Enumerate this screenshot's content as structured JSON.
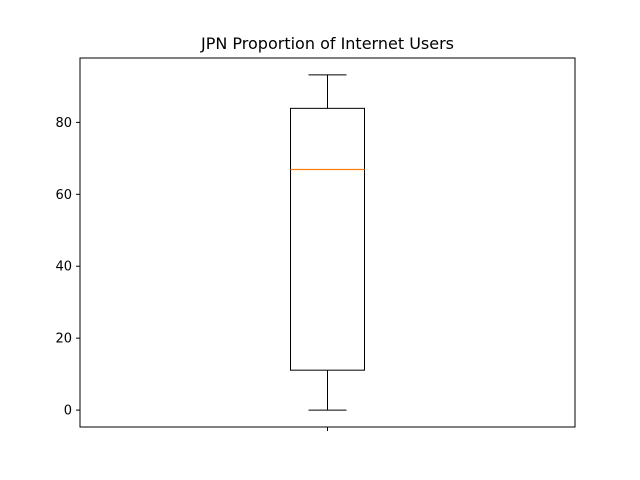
{
  "chart_data": {
    "type": "box",
    "title": "JPN Proportion of Internet Users",
    "xlabel": "",
    "ylabel": "",
    "ylim": [
      -4.7,
      97.9
    ],
    "yticks": [
      0,
      20,
      40,
      60,
      80
    ],
    "x_tick_labels": [
      ""
    ],
    "grid": false,
    "box": {
      "whisker_low": 0,
      "q1": 11.1,
      "median": 66.9,
      "q3": 83.9,
      "whisker_high": 93.2
    },
    "colors": {
      "box": "#000000",
      "median": "#ff7f0e"
    }
  }
}
